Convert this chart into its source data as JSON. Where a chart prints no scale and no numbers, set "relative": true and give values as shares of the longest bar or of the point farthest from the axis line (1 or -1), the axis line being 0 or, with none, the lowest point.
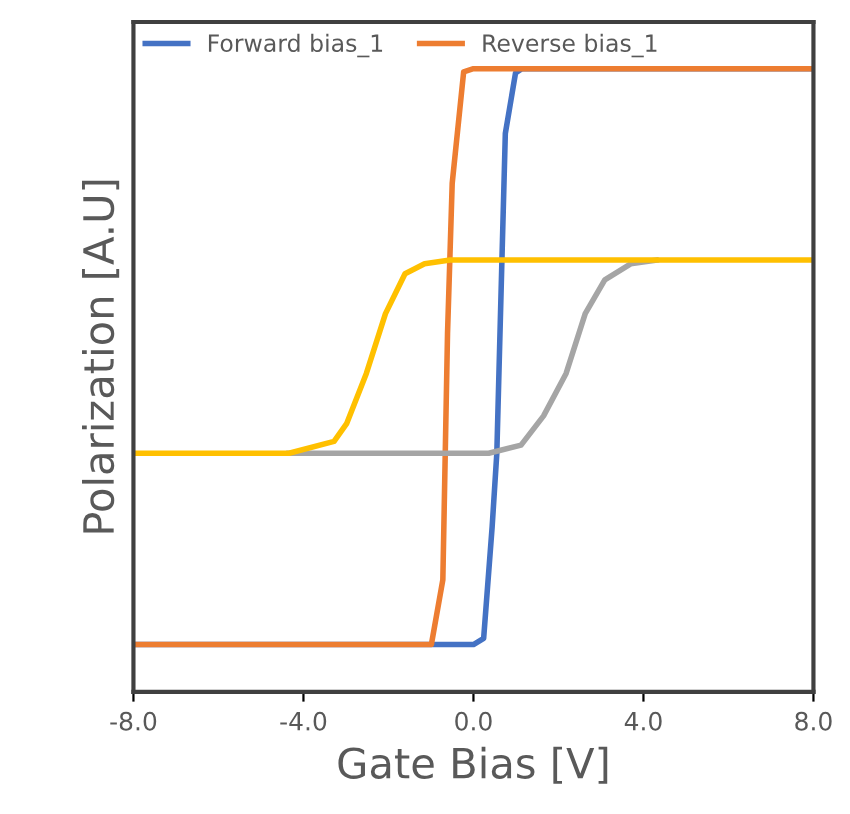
{
  "chart_data": {
    "type": "line",
    "relative": true,
    "xlabel": "Gate Bias [V]",
    "ylabel": "Polarization [A.U]",
    "xlim": [
      -8,
      8
    ],
    "xticks": [
      {
        "value": -8,
        "label": "-8.0"
      },
      {
        "value": -4,
        "label": "-4.0"
      },
      {
        "value": 0,
        "label": "0.0"
      },
      {
        "value": 4,
        "label": "4.0"
      },
      {
        "value": 8,
        "label": "8.0"
      }
    ],
    "grid": false,
    "legend": "top left",
    "marker": "none",
    "line_style": "solid",
    "tick_labels": "x",
    "series": [
      {
        "name": "Forward bias_1",
        "color": "#4472c4",
        "x": [
          -8,
          0.0,
          0.24,
          0.44,
          0.55,
          0.67,
          0.75,
          0.99,
          1.14,
          8
        ],
        "values": [
          0.076,
          0.076,
          0.086,
          0.265,
          0.383,
          0.693,
          0.896,
          0.993,
          1,
          1
        ]
      },
      {
        "name": "Reverse bias_1",
        "color": "#ed7d31",
        "x": [
          -8,
          -0.99,
          -0.72,
          -0.61,
          -0.5,
          -0.23,
          0.0,
          8
        ],
        "values": [
          0.076,
          0.076,
          0.18,
          0.575,
          0.816,
          0.995,
          1,
          1
        ]
      },
      {
        "color": "#a5a5a5",
        "x": [
          -4.34,
          0.36,
          1.12,
          1.65,
          2.18,
          2.63,
          3.09,
          3.7,
          4.3
        ],
        "values": [
          0.383,
          0.383,
          0.396,
          0.443,
          0.511,
          0.607,
          0.661,
          0.687,
          0.693
        ]
      },
      {
        "color": "#ffc000",
        "x": [
          -8,
          -4.34,
          -3.28,
          -2.98,
          -2.52,
          -2.07,
          -1.61,
          -1.15,
          -0.55,
          8
        ],
        "values": [
          0.383,
          0.383,
          0.402,
          0.431,
          0.511,
          0.607,
          0.671,
          0.687,
          0.693,
          0.693
        ]
      }
    ]
  }
}
